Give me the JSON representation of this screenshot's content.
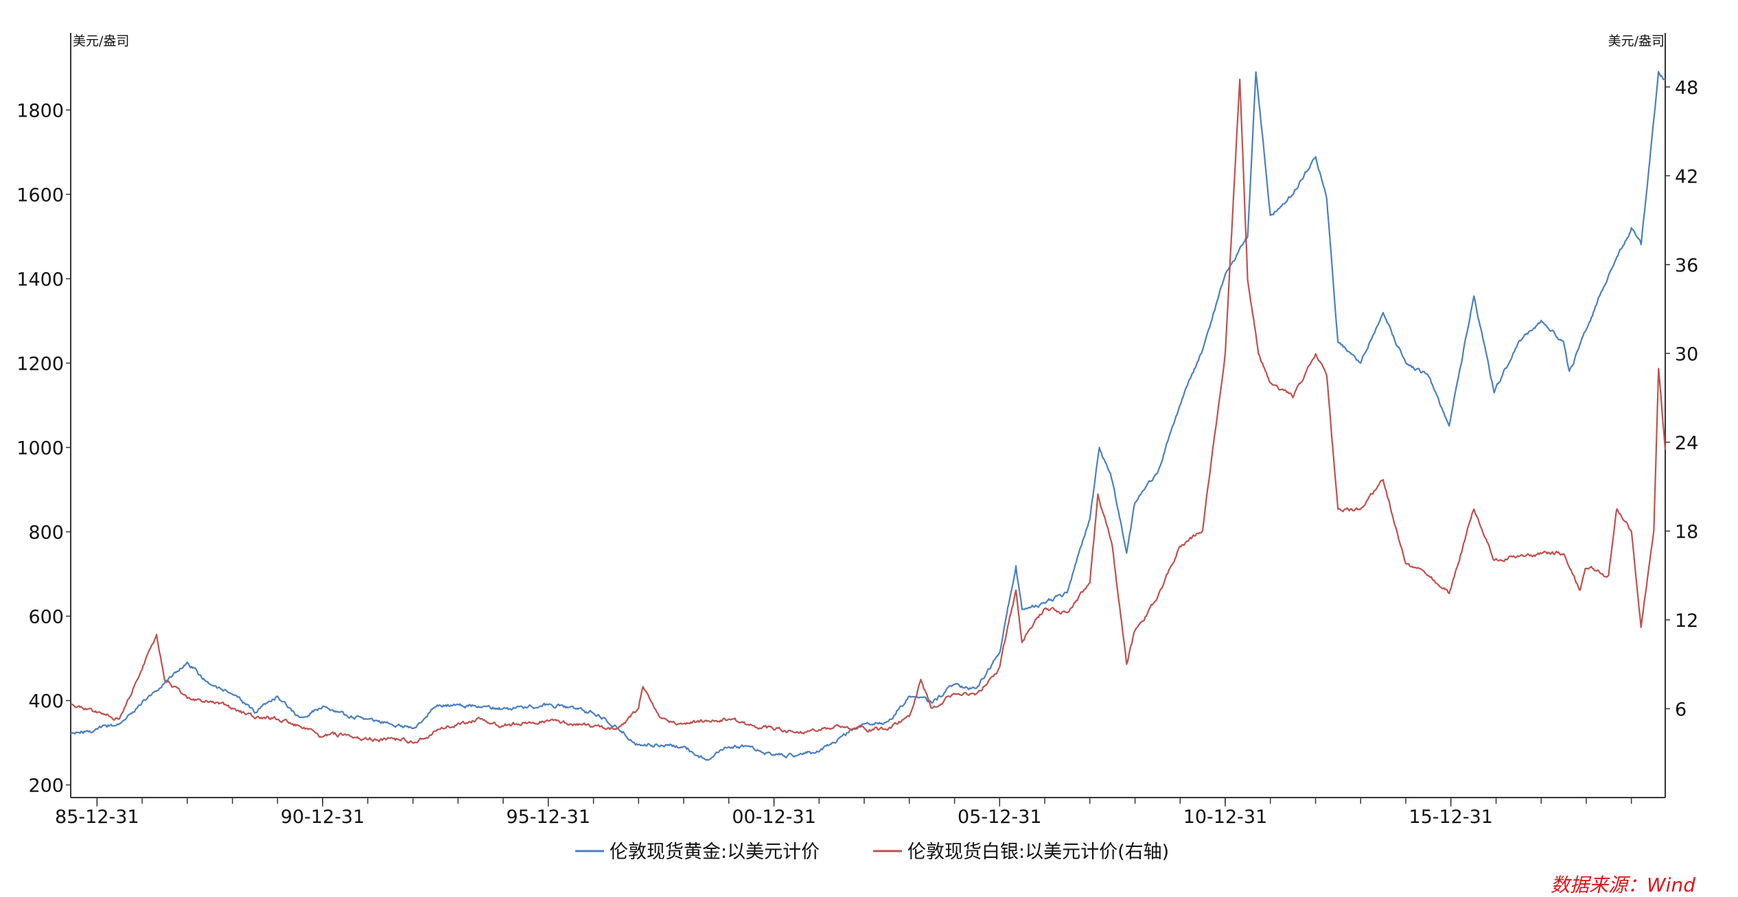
{
  "chart_data": {
    "type": "line",
    "title": "",
    "y_left_unit": "美元/盎司",
    "y_right_unit": "美元/盎司",
    "y_left_range": [
      170,
      1960
    ],
    "y_right_range": [
      0,
      51
    ],
    "y_left_ticks": [
      "200",
      "400",
      "600",
      "800",
      "1000",
      "1200",
      "1400",
      "1600",
      "1800"
    ],
    "y_right_ticks": [
      "6",
      "12",
      "18",
      "24",
      "30",
      "36",
      "42",
      "48"
    ],
    "x_ticks": [
      "85-12-31",
      "90-12-31",
      "95-12-31",
      "00-12-31",
      "05-12-31",
      "10-12-31",
      "15-12-31"
    ],
    "x_range": [
      "1985-06-01",
      "2020-09-30"
    ],
    "grid": false,
    "legend_position": "bottom",
    "source": "数据来源：Wind",
    "series": [
      {
        "name": "伦敦现货黄金:以美元计价",
        "axis": "left",
        "color": "#4a7fc1",
        "x": [
          "1985-06-01",
          "1986-06-30",
          "1987-03-31",
          "1987-12-31",
          "1988-06-30",
          "1988-12-31",
          "1989-06-30",
          "1989-12-31",
          "1990-06-30",
          "1990-12-31",
          "1991-06-30",
          "1991-12-31",
          "1992-06-30",
          "1992-12-31",
          "1993-06-30",
          "1993-12-31",
          "1994-06-30",
          "1994-12-31",
          "1995-06-30",
          "1995-12-31",
          "1996-06-30",
          "1996-12-31",
          "1997-06-30",
          "1997-12-31",
          "1998-06-30",
          "1998-12-31",
          "1999-06-30",
          "1999-12-31",
          "2000-06-30",
          "2000-12-31",
          "2001-06-30",
          "2001-12-31",
          "2002-06-30",
          "2002-12-31",
          "2003-06-30",
          "2003-12-31",
          "2004-06-30",
          "2004-12-31",
          "2005-06-30",
          "2005-12-31",
          "2006-05-12",
          "2006-06-30",
          "2006-12-31",
          "2007-06-30",
          "2007-12-31",
          "2008-03-17",
          "2008-06-30",
          "2008-10-24",
          "2008-12-31",
          "2009-06-30",
          "2009-12-31",
          "2010-06-30",
          "2010-12-31",
          "2011-06-30",
          "2011-09-05",
          "2011-12-31",
          "2012-06-30",
          "2012-12-31",
          "2013-03-31",
          "2013-06-30",
          "2013-12-31",
          "2014-06-30",
          "2014-12-31",
          "2015-06-30",
          "2015-12-17",
          "2016-07-05",
          "2016-12-15",
          "2017-06-30",
          "2017-12-31",
          "2018-06-30",
          "2018-08-16",
          "2018-12-31",
          "2019-06-30",
          "2019-12-31",
          "2020-03-19",
          "2020-06-30",
          "2020-08-06",
          "2020-09-30"
        ],
        "values": [
          320,
          345,
          420,
          490,
          440,
          415,
          370,
          410,
          360,
          385,
          365,
          355,
          345,
          335,
          385,
          390,
          385,
          380,
          385,
          390,
          385,
          370,
          340,
          295,
          295,
          290,
          260,
          290,
          290,
          272,
          270,
          278,
          315,
          345,
          350,
          410,
          395,
          438,
          430,
          513,
          720,
          615,
          630,
          655,
          830,
          1000,
          920,
          750,
          870,
          940,
          1100,
          1230,
          1410,
          1500,
          1890,
          1550,
          1600,
          1690,
          1590,
          1250,
          1200,
          1320,
          1200,
          1170,
          1050,
          1360,
          1130,
          1250,
          1300,
          1250,
          1180,
          1280,
          1410,
          1520,
          1480,
          1780,
          1890,
          1870
        ]
      },
      {
        "name": "伦敦现货白银:以美元计价(右轴)",
        "axis": "right",
        "color": "#c0504d",
        "x": [
          "1985-06-01",
          "1986-06-30",
          "1987-04-27",
          "1987-06-30",
          "1987-12-31",
          "1988-06-30",
          "1988-12-31",
          "1989-06-30",
          "1989-12-31",
          "1990-06-30",
          "1990-12-31",
          "1991-06-30",
          "1991-12-31",
          "1992-06-30",
          "1992-12-31",
          "1993-06-30",
          "1993-12-31",
          "1994-06-30",
          "1994-12-31",
          "1995-06-30",
          "1995-12-31",
          "1996-06-30",
          "1996-12-31",
          "1997-06-30",
          "1997-12-31",
          "1998-02-05",
          "1998-06-30",
          "1998-12-31",
          "1999-06-30",
          "1999-12-31",
          "2000-06-30",
          "2000-12-31",
          "2001-06-30",
          "2001-12-31",
          "2002-06-30",
          "2002-12-31",
          "2003-06-30",
          "2003-12-31",
          "2004-04-02",
          "2004-06-30",
          "2004-12-31",
          "2005-06-30",
          "2005-12-31",
          "2006-05-12",
          "2006-06-30",
          "2006-12-31",
          "2007-06-30",
          "2007-12-31",
          "2008-03-05",
          "2008-06-30",
          "2008-10-24",
          "2008-12-31",
          "2009-06-30",
          "2009-12-31",
          "2010-06-30",
          "2010-12-31",
          "2011-04-28",
          "2011-06-30",
          "2011-09-26",
          "2011-12-31",
          "2012-06-30",
          "2012-12-31",
          "2013-03-31",
          "2013-06-30",
          "2013-12-31",
          "2014-06-30",
          "2014-12-31",
          "2015-06-30",
          "2015-12-17",
          "2016-07-05",
          "2016-12-15",
          "2017-06-30",
          "2017-12-31",
          "2018-06-30",
          "2018-11-13",
          "2018-12-31",
          "2019-06-30",
          "2019-09-04",
          "2019-12-31",
          "2020-03-18",
          "2020-06-30",
          "2020-08-07",
          "2020-09-30"
        ],
        "values": [
          6.3,
          5.3,
          11.0,
          8.0,
          6.7,
          6.5,
          6.0,
          5.3,
          5.3,
          4.8,
          4.1,
          4.3,
          3.9,
          4.0,
          3.7,
          4.5,
          5.0,
          5.3,
          4.8,
          5.1,
          5.2,
          5.0,
          4.8,
          4.6,
          6.0,
          7.5,
          5.4,
          5.0,
          5.2,
          5.3,
          4.9,
          4.6,
          4.4,
          4.6,
          4.8,
          4.7,
          4.6,
          5.5,
          8.0,
          6.0,
          7.0,
          7.0,
          8.8,
          14.0,
          10.5,
          12.8,
          12.5,
          14.5,
          20.5,
          17.0,
          9.0,
          11.3,
          13.5,
          17.0,
          18.0,
          30.0,
          48.5,
          35.0,
          30.0,
          28.0,
          27.0,
          30.0,
          28.5,
          19.5,
          19.5,
          21.5,
          15.8,
          15.0,
          13.8,
          19.5,
          16.0,
          16.3,
          16.5,
          16.5,
          14.0,
          15.5,
          15.0,
          19.5,
          18.0,
          11.5,
          18.0,
          29.0,
          23.5
        ]
      }
    ]
  }
}
